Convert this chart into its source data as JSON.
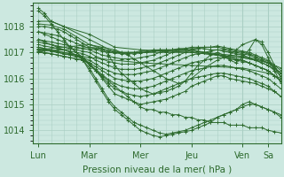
{
  "xlabel": "Pression niveau de la mer( hPa )",
  "bg_color": "#cce8e0",
  "line_color": "#2d6a2d",
  "grid_color": "#aacfc4",
  "tick_label_color": "#2d6a2d",
  "ylim": [
    1013.5,
    1018.9
  ],
  "yticks": [
    1014,
    1015,
    1016,
    1017,
    1018
  ],
  "day_positions": [
    0,
    48,
    96,
    144,
    192,
    216
  ],
  "day_labels": [
    "Lun",
    "Mar",
    "Mer",
    "Jeu",
    "Ven",
    "Sa"
  ],
  "xlim": [
    -5,
    228
  ],
  "ensemble_lines": [
    {
      "x": [
        0,
        6,
        12,
        18,
        24,
        30,
        36,
        42,
        48,
        54,
        60,
        66,
        72,
        78,
        84,
        90,
        96,
        102,
        108,
        114,
        120,
        126,
        132,
        138,
        144,
        150,
        156,
        162,
        168,
        174,
        180,
        186,
        192,
        198,
        204,
        210,
        216,
        222,
        228
      ],
      "y": [
        1018.6,
        1018.4,
        1018.1,
        1017.8,
        1017.5,
        1017.2,
        1017.0,
        1016.8,
        1016.5,
        1016.3,
        1016.1,
        1015.9,
        1015.7,
        1015.5,
        1015.3,
        1015.1,
        1014.9,
        1014.8,
        1014.8,
        1014.7,
        1014.7,
        1014.6,
        1014.6,
        1014.5,
        1014.5,
        1014.4,
        1014.4,
        1014.3,
        1014.3,
        1014.3,
        1014.2,
        1014.2,
        1014.2,
        1014.1,
        1014.1,
        1014.1,
        1014.0,
        1013.95,
        1013.9
      ]
    },
    {
      "x": [
        0,
        6,
        12,
        18,
        24,
        30,
        36,
        42,
        48,
        54,
        60,
        66,
        72,
        78,
        84,
        90,
        96,
        102,
        108,
        114,
        120,
        126,
        132,
        138,
        144,
        150,
        156,
        162,
        168,
        174,
        180,
        186,
        192,
        198,
        204,
        210,
        216,
        222,
        228
      ],
      "y": [
        1017.8,
        1017.7,
        1017.6,
        1017.5,
        1017.4,
        1017.2,
        1017.0,
        1016.7,
        1016.3,
        1015.9,
        1015.5,
        1015.1,
        1014.8,
        1014.6,
        1014.4,
        1014.2,
        1014.0,
        1013.9,
        1013.8,
        1013.75,
        1013.8,
        1013.85,
        1013.9,
        1013.95,
        1014.0,
        1014.1,
        1014.2,
        1014.3,
        1014.5,
        1014.6,
        1014.7,
        1014.8,
        1014.9,
        1015.0,
        1015.0,
        1014.9,
        1014.8,
        1014.7,
        1014.5
      ]
    },
    {
      "x": [
        0,
        6,
        12,
        18,
        24,
        30,
        36,
        42,
        48,
        54,
        60,
        66,
        72,
        78,
        84,
        90,
        96,
        102,
        108,
        114,
        120,
        126,
        132,
        138,
        144,
        150,
        156,
        162,
        168,
        174,
        180,
        186,
        192,
        198,
        204,
        210,
        216,
        222,
        228
      ],
      "y": [
        1017.5,
        1017.4,
        1017.3,
        1017.2,
        1017.1,
        1017.0,
        1016.9,
        1016.7,
        1016.4,
        1016.0,
        1015.6,
        1015.2,
        1014.9,
        1014.7,
        1014.5,
        1014.3,
        1014.2,
        1014.1,
        1014.0,
        1013.9,
        1013.85,
        1013.9,
        1013.95,
        1014.0,
        1014.1,
        1014.2,
        1014.3,
        1014.4,
        1014.5,
        1014.6,
        1014.7,
        1014.8,
        1015.0,
        1015.1,
        1015.0,
        1014.9,
        1014.8,
        1014.7,
        1014.6
      ]
    },
    {
      "x": [
        0,
        6,
        12,
        18,
        24,
        30,
        36,
        42,
        48,
        54,
        60,
        66,
        72,
        78,
        84,
        90,
        96,
        102,
        108,
        114,
        120,
        126,
        132,
        138,
        144,
        150,
        156,
        162,
        168,
        174,
        180,
        186,
        192,
        198,
        204,
        210,
        216,
        222,
        228
      ],
      "y": [
        1017.2,
        1017.15,
        1017.1,
        1017.05,
        1017.0,
        1016.95,
        1016.9,
        1016.8,
        1016.6,
        1016.3,
        1016.0,
        1015.7,
        1015.4,
        1015.3,
        1015.2,
        1015.1,
        1015.0,
        1015.05,
        1015.1,
        1015.15,
        1015.2,
        1015.3,
        1015.4,
        1015.5,
        1015.7,
        1015.8,
        1015.9,
        1016.0,
        1016.1,
        1016.1,
        1016.0,
        1015.95,
        1015.9,
        1015.85,
        1015.8,
        1015.7,
        1015.6,
        1015.5,
        1015.3
      ]
    },
    {
      "x": [
        0,
        6,
        12,
        18,
        24,
        30,
        36,
        42,
        48,
        54,
        60,
        66,
        72,
        78,
        84,
        90,
        96,
        102,
        108,
        114,
        120,
        126,
        132,
        138,
        144,
        150,
        156,
        162,
        168,
        174,
        180,
        186,
        192,
        198,
        204,
        210,
        216,
        222,
        228
      ],
      "y": [
        1017.1,
        1017.1,
        1017.05,
        1017.0,
        1016.95,
        1016.9,
        1016.85,
        1016.75,
        1016.55,
        1016.3,
        1016.05,
        1015.8,
        1015.6,
        1015.5,
        1015.4,
        1015.35,
        1015.3,
        1015.35,
        1015.4,
        1015.5,
        1015.6,
        1015.7,
        1015.8,
        1015.9,
        1016.0,
        1016.05,
        1016.1,
        1016.15,
        1016.2,
        1016.2,
        1016.15,
        1016.1,
        1016.05,
        1016.0,
        1015.9,
        1015.8,
        1015.7,
        1015.5,
        1015.3
      ]
    },
    {
      "x": [
        0,
        6,
        12,
        18,
        24,
        30,
        36,
        42,
        48,
        54,
        60,
        66,
        72,
        78,
        84,
        90,
        96,
        102,
        108,
        114,
        120,
        126,
        132,
        138,
        144,
        150,
        156,
        162,
        168,
        174,
        180,
        186,
        192,
        198,
        204,
        210,
        216,
        222,
        228
      ],
      "y": [
        1017.05,
        1017.0,
        1016.95,
        1016.9,
        1016.85,
        1016.8,
        1016.75,
        1016.7,
        1016.55,
        1016.35,
        1016.15,
        1015.95,
        1015.8,
        1015.7,
        1015.65,
        1015.6,
        1015.6,
        1015.65,
        1015.7,
        1015.8,
        1015.9,
        1016.0,
        1016.1,
        1016.2,
        1016.3,
        1016.35,
        1016.4,
        1016.45,
        1016.5,
        1016.5,
        1016.45,
        1016.4,
        1016.35,
        1016.3,
        1016.2,
        1016.1,
        1016.0,
        1015.8,
        1015.6
      ]
    },
    {
      "x": [
        0,
        6,
        12,
        18,
        24,
        30,
        36,
        42,
        48,
        54,
        60,
        66,
        72,
        78,
        84,
        90,
        96,
        102,
        108,
        114,
        120,
        126,
        132,
        138,
        144,
        150,
        156,
        162,
        168,
        174,
        180,
        186,
        192,
        198,
        204,
        210,
        216,
        222,
        228
      ],
      "y": [
        1017.0,
        1016.98,
        1016.95,
        1016.9,
        1016.85,
        1016.8,
        1016.75,
        1016.7,
        1016.6,
        1016.45,
        1016.3,
        1016.15,
        1016.0,
        1015.95,
        1015.9,
        1015.9,
        1015.9,
        1015.95,
        1016.0,
        1016.1,
        1016.2,
        1016.3,
        1016.4,
        1016.5,
        1016.6,
        1016.65,
        1016.7,
        1016.75,
        1016.8,
        1016.8,
        1016.75,
        1016.7,
        1016.65,
        1016.6,
        1016.5,
        1016.4,
        1016.3,
        1016.1,
        1015.9
      ]
    },
    {
      "x": [
        0,
        6,
        12,
        18,
        24,
        30,
        36,
        42,
        48,
        54,
        60,
        66,
        72,
        78,
        84,
        90,
        96,
        102,
        108,
        114,
        120,
        126,
        132,
        138,
        144,
        150,
        156,
        162,
        168,
        174,
        180,
        186,
        192,
        198,
        204,
        210,
        216,
        222,
        228
      ],
      "y": [
        1017.15,
        1017.1,
        1017.05,
        1017.0,
        1016.95,
        1016.9,
        1016.85,
        1016.8,
        1016.7,
        1016.55,
        1016.4,
        1016.3,
        1016.2,
        1016.15,
        1016.15,
        1016.15,
        1016.2,
        1016.25,
        1016.3,
        1016.4,
        1016.5,
        1016.6,
        1016.7,
        1016.8,
        1016.9,
        1016.95,
        1017.0,
        1017.05,
        1017.1,
        1017.1,
        1017.05,
        1017.0,
        1016.95,
        1016.9,
        1016.8,
        1016.7,
        1016.6,
        1016.4,
        1016.2
      ]
    },
    {
      "x": [
        0,
        6,
        12,
        18,
        24,
        30,
        36,
        42,
        48,
        54,
        60,
        66,
        72,
        78,
        84,
        90,
        96,
        102,
        108,
        114,
        120,
        126,
        132,
        138,
        144,
        150,
        156,
        162,
        168,
        174,
        180,
        186,
        192,
        198,
        204,
        210,
        216,
        222,
        228
      ],
      "y": [
        1017.3,
        1017.25,
        1017.2,
        1017.15,
        1017.1,
        1017.05,
        1017.0,
        1016.95,
        1016.85,
        1016.7,
        1016.6,
        1016.5,
        1016.4,
        1016.35,
        1016.35,
        1016.35,
        1016.4,
        1016.45,
        1016.5,
        1016.6,
        1016.7,
        1016.8,
        1016.9,
        1017.0,
        1017.1,
        1017.15,
        1017.2,
        1017.2,
        1017.25,
        1017.2,
        1017.15,
        1017.1,
        1017.05,
        1017.0,
        1016.9,
        1016.8,
        1016.7,
        1016.5,
        1016.3
      ]
    },
    {
      "x": [
        0,
        6,
        12,
        18,
        24,
        30,
        36,
        42,
        48,
        54,
        60,
        66,
        72,
        78,
        84,
        90,
        96,
        102,
        108,
        114,
        120,
        126,
        132,
        138,
        144,
        150,
        156,
        162,
        168,
        174,
        180,
        186,
        192,
        198,
        204,
        210,
        216,
        222,
        228
      ],
      "y": [
        1017.4,
        1017.35,
        1017.3,
        1017.25,
        1017.2,
        1017.15,
        1017.1,
        1017.05,
        1017.0,
        1016.85,
        1016.75,
        1016.65,
        1016.6,
        1016.55,
        1016.55,
        1016.55,
        1016.6,
        1016.65,
        1016.7,
        1016.8,
        1016.9,
        1017.0,
        1017.1,
        1017.15,
        1017.2,
        1017.2,
        1017.2,
        1017.2,
        1017.2,
        1017.15,
        1017.1,
        1017.05,
        1017.0,
        1016.95,
        1016.85,
        1016.75,
        1016.65,
        1016.4,
        1016.2
      ]
    },
    {
      "x": [
        0,
        6,
        12,
        18,
        24,
        30,
        36,
        42,
        48,
        54,
        60,
        66,
        72,
        78,
        84,
        90,
        96,
        102,
        108,
        114,
        120,
        126,
        132,
        138,
        144,
        150,
        156,
        162,
        168,
        174,
        180,
        186,
        192,
        198,
        204,
        210,
        216,
        222,
        228
      ],
      "y": [
        1017.5,
        1017.45,
        1017.4,
        1017.35,
        1017.3,
        1017.25,
        1017.2,
        1017.15,
        1017.1,
        1017.0,
        1016.9,
        1016.85,
        1016.8,
        1016.75,
        1016.75,
        1016.75,
        1016.8,
        1016.85,
        1016.9,
        1017.0,
        1017.05,
        1017.1,
        1017.15,
        1017.15,
        1017.15,
        1017.15,
        1017.15,
        1017.1,
        1017.1,
        1017.05,
        1017.0,
        1016.95,
        1016.9,
        1016.8,
        1016.7,
        1016.6,
        1016.5,
        1016.3,
        1016.1
      ]
    },
    {
      "x": [
        0,
        6,
        12,
        18,
        24,
        30,
        36,
        42,
        48,
        54,
        60,
        66,
        72,
        78,
        84,
        90,
        96,
        102,
        108,
        114,
        120,
        126,
        132,
        138,
        144,
        150,
        156,
        162,
        168,
        174,
        180,
        186,
        192,
        198,
        204,
        210,
        216,
        222,
        228
      ],
      "y": [
        1017.8,
        1017.75,
        1017.7,
        1017.65,
        1017.55,
        1017.45,
        1017.35,
        1017.25,
        1017.15,
        1017.1,
        1017.05,
        1017.0,
        1016.98,
        1016.95,
        1016.95,
        1016.95,
        1016.98,
        1017.0,
        1017.05,
        1017.1,
        1017.1,
        1017.1,
        1017.1,
        1017.1,
        1017.1,
        1017.05,
        1017.0,
        1016.95,
        1016.9,
        1016.85,
        1016.8,
        1016.75,
        1016.7,
        1016.6,
        1016.5,
        1016.4,
        1016.3,
        1016.1,
        1015.9
      ]
    },
    {
      "x": [
        0,
        6,
        12,
        18,
        24,
        30,
        36,
        42,
        48,
        54,
        60,
        66,
        72,
        78,
        84,
        90,
        96,
        102,
        108,
        114,
        120,
        126,
        132,
        138,
        144,
        150,
        156,
        162,
        168,
        174,
        180,
        186,
        192,
        198,
        204,
        210,
        216,
        222,
        228
      ],
      "y": [
        1018.0,
        1018.0,
        1017.95,
        1017.9,
        1017.8,
        1017.65,
        1017.5,
        1017.35,
        1017.2,
        1017.15,
        1017.1,
        1017.05,
        1017.05,
        1017.0,
        1017.0,
        1017.0,
        1017.05,
        1017.05,
        1017.1,
        1017.1,
        1017.1,
        1017.1,
        1017.1,
        1017.1,
        1017.1,
        1017.05,
        1017.0,
        1016.95,
        1016.9,
        1016.85,
        1016.8,
        1016.75,
        1016.7,
        1016.6,
        1016.5,
        1016.4,
        1016.3,
        1016.1,
        1015.9
      ]
    },
    {
      "x": [
        0,
        12,
        24,
        36,
        48,
        60,
        72,
        84,
        96,
        108,
        120,
        132,
        144,
        156,
        168,
        180,
        192,
        204,
        216,
        228
      ],
      "y": [
        1018.1,
        1018.05,
        1017.9,
        1017.6,
        1017.3,
        1017.15,
        1017.0,
        1016.98,
        1017.0,
        1017.05,
        1017.05,
        1017.05,
        1017.05,
        1017.0,
        1016.95,
        1016.9,
        1016.85,
        1016.75,
        1016.6,
        1016.4
      ]
    },
    {
      "x": [
        0,
        12,
        24,
        48,
        72,
        96,
        120,
        144,
        168,
        192,
        204,
        216,
        228
      ],
      "y": [
        1018.2,
        1018.2,
        1018.0,
        1017.5,
        1017.0,
        1017.0,
        1017.0,
        1017.0,
        1016.9,
        1016.8,
        1016.7,
        1016.5,
        1016.2
      ]
    },
    {
      "x": [
        0,
        6,
        12,
        24,
        48,
        72,
        96,
        120,
        144,
        168,
        192,
        216,
        222,
        228
      ],
      "y": [
        1018.7,
        1018.5,
        1018.2,
        1018.0,
        1017.7,
        1017.2,
        1017.1,
        1017.05,
        1017.0,
        1016.9,
        1016.8,
        1016.6,
        1016.4,
        1016.2
      ]
    },
    {
      "x": [
        0,
        48,
        96,
        144,
        192,
        216,
        228
      ],
      "y": [
        1017.2,
        1016.8,
        1016.6,
        1016.5,
        1016.4,
        1016.2,
        1016.0
      ]
    },
    {
      "x": [
        0,
        24,
        48,
        60,
        72,
        84,
        96,
        108,
        120,
        132,
        144,
        156,
        168,
        180,
        192,
        204,
        210,
        216,
        222,
        228
      ],
      "y": [
        1017.1,
        1017.2,
        1017.3,
        1017.2,
        1017.1,
        1016.9,
        1016.6,
        1016.3,
        1016.0,
        1015.8,
        1016.0,
        1016.4,
        1016.7,
        1016.9,
        1017.3,
        1017.5,
        1017.4,
        1017.0,
        1016.5,
        1016.0
      ]
    },
    {
      "x": [
        0,
        24,
        48,
        60,
        66,
        72,
        78,
        84,
        90,
        96,
        102,
        108,
        114,
        120,
        126,
        132,
        138,
        144,
        150,
        156,
        162,
        168,
        174,
        180,
        186,
        192,
        198,
        204,
        210,
        216,
        222,
        228
      ],
      "y": [
        1017.05,
        1017.1,
        1017.2,
        1017.15,
        1016.9,
        1016.5,
        1016.2,
        1016.0,
        1015.8,
        1015.6,
        1015.5,
        1015.4,
        1015.45,
        1015.5,
        1015.6,
        1015.7,
        1015.9,
        1016.2,
        1016.5,
        1016.7,
        1016.9,
        1017.0,
        1016.9,
        1016.7,
        1016.6,
        1016.8,
        1017.1,
        1017.5,
        1017.3,
        1016.8,
        1016.3,
        1015.8
      ]
    }
  ]
}
